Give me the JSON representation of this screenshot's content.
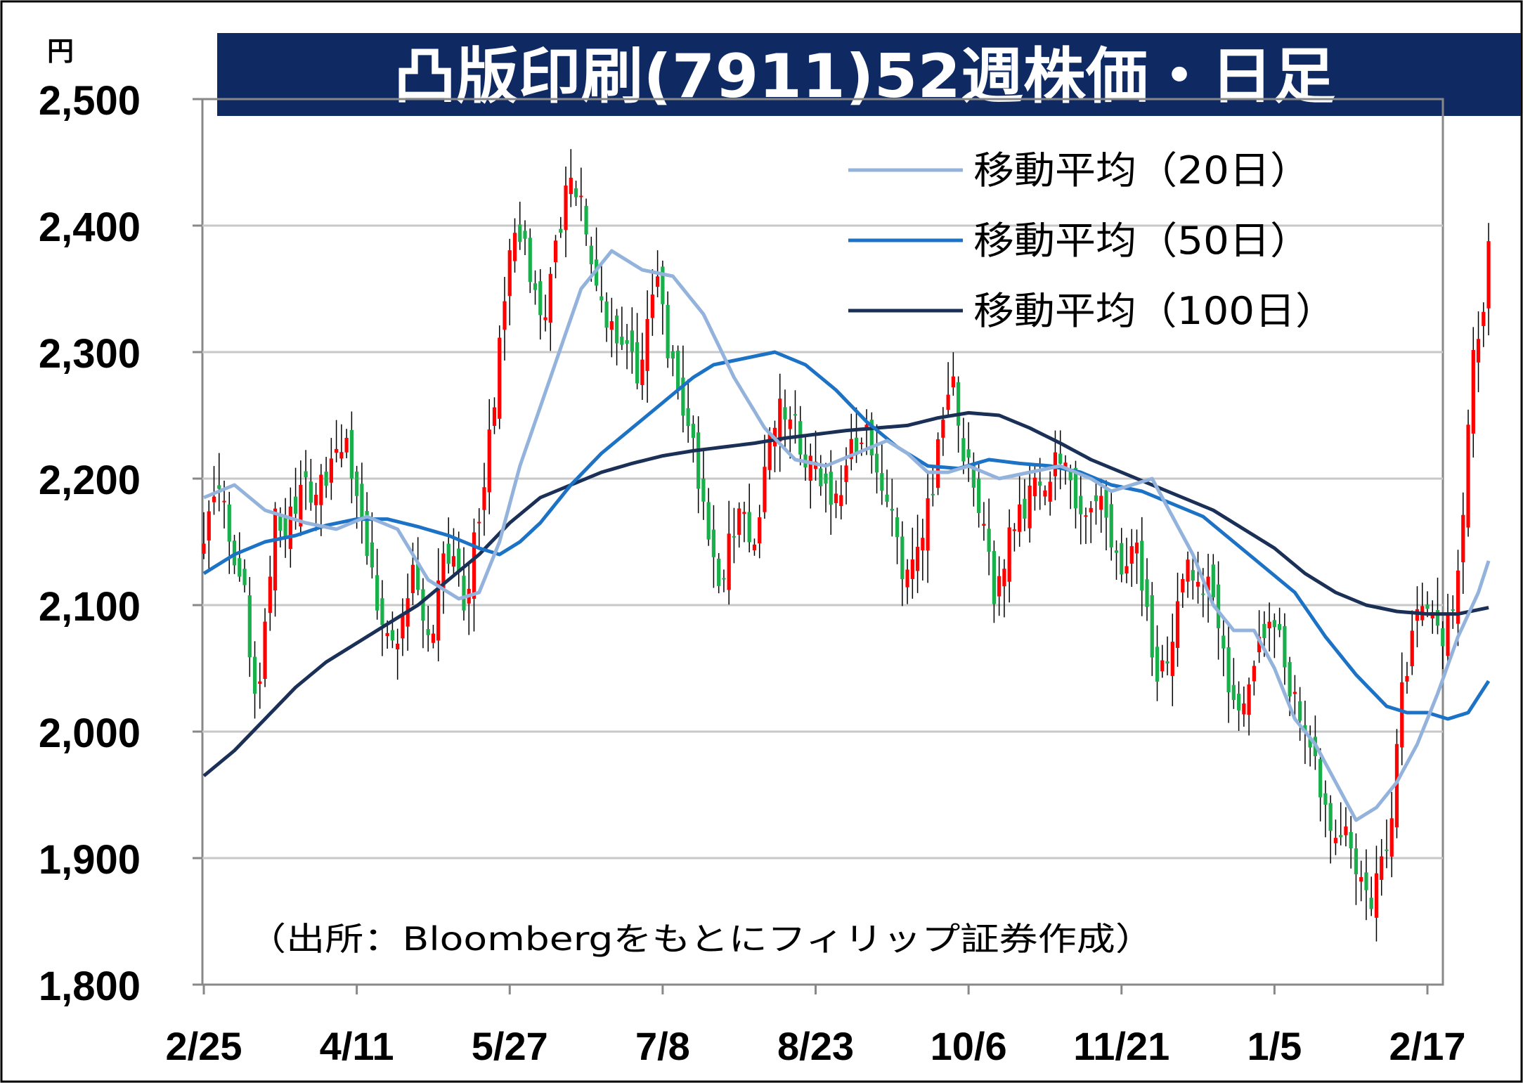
{
  "title": "凸版印刷(7911)52週株価・日足",
  "unit_label": "円",
  "source_note": "（出所：Bloombergをもとにフィリップ証券作成）",
  "colors": {
    "title_bg": "#0f2a63",
    "up": "#ff0000",
    "down": "#19b04b",
    "ma20": "#93b3dc",
    "ma50": "#1c72c4",
    "ma100": "#1b3056",
    "grid": "#c8c8c8",
    "axis": "#888888",
    "frame": "#000000"
  },
  "chart_data": {
    "type": "candlestick",
    "ylim": [
      1800,
      2500
    ],
    "yticks": [
      {
        "value": 1800,
        "label": "1,800"
      },
      {
        "value": 1900,
        "label": "1,900"
      },
      {
        "value": 2000,
        "label": "2,000"
      },
      {
        "value": 2100,
        "label": "2,100"
      },
      {
        "value": 2200,
        "label": "2,200"
      },
      {
        "value": 2300,
        "label": "2,300"
      },
      {
        "value": 2400,
        "label": "2,400"
      },
      {
        "value": 2500,
        "label": "2,500"
      }
    ],
    "xlim": [
      0,
      242
    ],
    "xticks": [
      {
        "index": 0,
        "label": "2/25"
      },
      {
        "index": 30,
        "label": "4/11"
      },
      {
        "index": 60,
        "label": "5/27"
      },
      {
        "index": 90,
        "label": "7/8"
      },
      {
        "index": 120,
        "label": "8/23"
      },
      {
        "index": 150,
        "label": "10/6"
      },
      {
        "index": 180,
        "label": "11/21"
      },
      {
        "index": 210,
        "label": "1/5"
      },
      {
        "index": 240,
        "label": "2/17"
      }
    ],
    "grid": true,
    "legend": {
      "position": "top-right",
      "entries": [
        {
          "label": "移動平均（20日）",
          "series": "ma20"
        },
        {
          "label": "移動平均（50日）",
          "series": "ma50"
        },
        {
          "label": "移動平均（100日）",
          "series": "ma100"
        }
      ]
    },
    "close_anchors": [
      [
        0,
        2160
      ],
      [
        3,
        2195
      ],
      [
        6,
        2140
      ],
      [
        8,
        2105
      ],
      [
        10,
        2020
      ],
      [
        12,
        2080
      ],
      [
        14,
        2165
      ],
      [
        16,
        2155
      ],
      [
        18,
        2180
      ],
      [
        20,
        2195
      ],
      [
        22,
        2190
      ],
      [
        25,
        2215
      ],
      [
        27,
        2230
      ],
      [
        29,
        2210
      ],
      [
        31,
        2160
      ],
      [
        33,
        2130
      ],
      [
        35,
        2080
      ],
      [
        37,
        2060
      ],
      [
        39,
        2100
      ],
      [
        41,
        2120
      ],
      [
        43,
        2080
      ],
      [
        45,
        2090
      ],
      [
        47,
        2130
      ],
      [
        49,
        2140
      ],
      [
        51,
        2100
      ],
      [
        53,
        2150
      ],
      [
        55,
        2200
      ],
      [
        57,
        2260
      ],
      [
        59,
        2350
      ],
      [
        61,
        2400
      ],
      [
        63,
        2380
      ],
      [
        65,
        2340
      ],
      [
        67,
        2320
      ],
      [
        69,
        2390
      ],
      [
        71,
        2420
      ],
      [
        73,
        2430
      ],
      [
        75,
        2400
      ],
      [
        77,
        2360
      ],
      [
        79,
        2330
      ],
      [
        81,
        2300
      ],
      [
        83,
        2310
      ],
      [
        85,
        2280
      ],
      [
        87,
        2320
      ],
      [
        89,
        2360
      ],
      [
        91,
        2300
      ],
      [
        93,
        2270
      ],
      [
        95,
        2240
      ],
      [
        97,
        2200
      ],
      [
        99,
        2160
      ],
      [
        101,
        2110
      ],
      [
        103,
        2150
      ],
      [
        105,
        2180
      ],
      [
        107,
        2150
      ],
      [
        109,
        2170
      ],
      [
        111,
        2230
      ],
      [
        113,
        2260
      ],
      [
        115,
        2250
      ],
      [
        117,
        2230
      ],
      [
        119,
        2210
      ],
      [
        121,
        2200
      ],
      [
        123,
        2180
      ],
      [
        125,
        2190
      ],
      [
        127,
        2220
      ],
      [
        129,
        2240
      ],
      [
        131,
        2220
      ],
      [
        133,
        2200
      ],
      [
        135,
        2180
      ],
      [
        137,
        2130
      ],
      [
        139,
        2140
      ],
      [
        141,
        2160
      ],
      [
        143,
        2200
      ],
      [
        145,
        2240
      ],
      [
        147,
        2270
      ],
      [
        149,
        2210
      ],
      [
        151,
        2200
      ],
      [
        153,
        2170
      ],
      [
        155,
        2110
      ],
      [
        157,
        2140
      ],
      [
        159,
        2170
      ],
      [
        161,
        2180
      ],
      [
        163,
        2190
      ],
      [
        165,
        2200
      ],
      [
        167,
        2220
      ],
      [
        169,
        2200
      ],
      [
        171,
        2180
      ],
      [
        173,
        2180
      ],
      [
        175,
        2190
      ],
      [
        177,
        2160
      ],
      [
        179,
        2130
      ],
      [
        181,
        2140
      ],
      [
        183,
        2150
      ],
      [
        185,
        2090
      ],
      [
        187,
        2040
      ],
      [
        189,
        2060
      ],
      [
        191,
        2100
      ],
      [
        193,
        2130
      ],
      [
        195,
        2110
      ],
      [
        197,
        2120
      ],
      [
        199,
        2090
      ],
      [
        201,
        2040
      ],
      [
        203,
        2020
      ],
      [
        205,
        2030
      ],
      [
        207,
        2070
      ],
      [
        209,
        2090
      ],
      [
        211,
        2080
      ],
      [
        213,
        2040
      ],
      [
        215,
        2010
      ],
      [
        217,
        1990
      ],
      [
        219,
        1960
      ],
      [
        221,
        1930
      ],
      [
        223,
        1910
      ],
      [
        225,
        1920
      ],
      [
        227,
        1880
      ],
      [
        229,
        1860
      ],
      [
        231,
        1890
      ],
      [
        233,
        1940
      ],
      [
        235,
        2030
      ],
      [
        237,
        2080
      ],
      [
        239,
        2100
      ],
      [
        241,
        2090
      ],
      [
        243,
        2070
      ],
      [
        245,
        2100
      ],
      [
        247,
        2180
      ],
      [
        249,
        2290
      ],
      [
        251,
        2320
      ],
      [
        252,
        2375
      ]
    ],
    "ma20_points": [
      [
        0,
        2185
      ],
      [
        6,
        2195
      ],
      [
        12,
        2175
      ],
      [
        20,
        2165
      ],
      [
        26,
        2160
      ],
      [
        32,
        2170
      ],
      [
        38,
        2160
      ],
      [
        44,
        2120
      ],
      [
        50,
        2105
      ],
      [
        54,
        2110
      ],
      [
        58,
        2150
      ],
      [
        62,
        2210
      ],
      [
        68,
        2280
      ],
      [
        74,
        2350
      ],
      [
        80,
        2380
      ],
      [
        86,
        2365
      ],
      [
        92,
        2360
      ],
      [
        98,
        2330
      ],
      [
        104,
        2280
      ],
      [
        110,
        2240
      ],
      [
        116,
        2215
      ],
      [
        122,
        2210
      ],
      [
        128,
        2220
      ],
      [
        134,
        2230
      ],
      [
        138,
        2220
      ],
      [
        142,
        2205
      ],
      [
        146,
        2205
      ],
      [
        150,
        2210
      ],
      [
        156,
        2200
      ],
      [
        162,
        2205
      ],
      [
        168,
        2210
      ],
      [
        174,
        2200
      ],
      [
        178,
        2190
      ],
      [
        182,
        2195
      ],
      [
        186,
        2200
      ],
      [
        190,
        2170
      ],
      [
        194,
        2140
      ],
      [
        198,
        2100
      ],
      [
        202,
        2080
      ],
      [
        206,
        2080
      ],
      [
        210,
        2050
      ],
      [
        214,
        2010
      ],
      [
        218,
        1990
      ],
      [
        222,
        1960
      ],
      [
        226,
        1930
      ],
      [
        230,
        1940
      ],
      [
        234,
        1960
      ],
      [
        238,
        1990
      ],
      [
        242,
        2030
      ],
      [
        246,
        2075
      ],
      [
        250,
        2110
      ],
      [
        252,
        2135
      ]
    ],
    "ma50_points": [
      [
        0,
        2125
      ],
      [
        6,
        2140
      ],
      [
        12,
        2150
      ],
      [
        18,
        2155
      ],
      [
        24,
        2163
      ],
      [
        30,
        2168
      ],
      [
        36,
        2168
      ],
      [
        42,
        2162
      ],
      [
        48,
        2155
      ],
      [
        54,
        2145
      ],
      [
        58,
        2140
      ],
      [
        62,
        2150
      ],
      [
        66,
        2165
      ],
      [
        72,
        2195
      ],
      [
        78,
        2220
      ],
      [
        84,
        2240
      ],
      [
        90,
        2260
      ],
      [
        96,
        2280
      ],
      [
        100,
        2290
      ],
      [
        106,
        2295
      ],
      [
        112,
        2300
      ],
      [
        118,
        2290
      ],
      [
        124,
        2270
      ],
      [
        130,
        2245
      ],
      [
        136,
        2225
      ],
      [
        142,
        2210
      ],
      [
        148,
        2208
      ],
      [
        154,
        2215
      ],
      [
        160,
        2212
      ],
      [
        166,
        2210
      ],
      [
        172,
        2205
      ],
      [
        178,
        2195
      ],
      [
        184,
        2190
      ],
      [
        190,
        2180
      ],
      [
        196,
        2170
      ],
      [
        202,
        2150
      ],
      [
        208,
        2130
      ],
      [
        214,
        2110
      ],
      [
        220,
        2075
      ],
      [
        226,
        2045
      ],
      [
        232,
        2020
      ],
      [
        236,
        2015
      ],
      [
        240,
        2015
      ],
      [
        244,
        2010
      ],
      [
        248,
        2015
      ],
      [
        252,
        2040
      ]
    ],
    "ma100_points": [
      [
        0,
        1965
      ],
      [
        6,
        1985
      ],
      [
        12,
        2010
      ],
      [
        18,
        2035
      ],
      [
        24,
        2055
      ],
      [
        30,
        2070
      ],
      [
        36,
        2085
      ],
      [
        42,
        2100
      ],
      [
        48,
        2120
      ],
      [
        54,
        2140
      ],
      [
        60,
        2165
      ],
      [
        66,
        2185
      ],
      [
        72,
        2195
      ],
      [
        78,
        2205
      ],
      [
        84,
        2212
      ],
      [
        90,
        2218
      ],
      [
        96,
        2222
      ],
      [
        102,
        2225
      ],
      [
        108,
        2228
      ],
      [
        114,
        2232
      ],
      [
        120,
        2235
      ],
      [
        126,
        2238
      ],
      [
        132,
        2240
      ],
      [
        138,
        2242
      ],
      [
        144,
        2248
      ],
      [
        150,
        2252
      ],
      [
        156,
        2250
      ],
      [
        162,
        2240
      ],
      [
        168,
        2228
      ],
      [
        174,
        2215
      ],
      [
        180,
        2205
      ],
      [
        186,
        2195
      ],
      [
        192,
        2185
      ],
      [
        198,
        2175
      ],
      [
        204,
        2160
      ],
      [
        210,
        2145
      ],
      [
        216,
        2125
      ],
      [
        222,
        2110
      ],
      [
        228,
        2100
      ],
      [
        234,
        2095
      ],
      [
        240,
        2093
      ],
      [
        246,
        2093
      ],
      [
        252,
        2098
      ]
    ]
  }
}
